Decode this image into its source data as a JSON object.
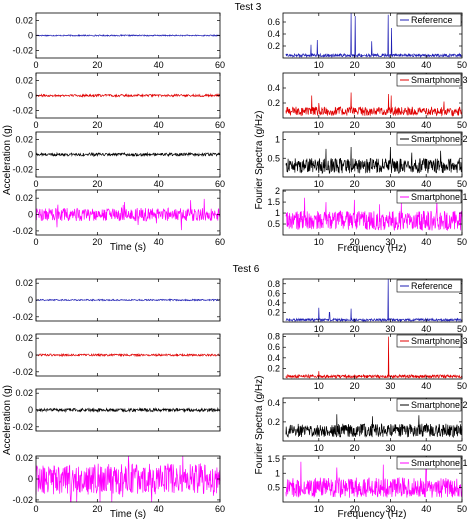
{
  "figure": {
    "tests": [
      {
        "title": "Test 3",
        "time_axis_label": "Time (s)",
        "acc_axis_label": "Acceleration (g)",
        "freq_axis_label": "Frequency (Hz)",
        "fs_axis_label": "Fourier Spectra (g/Hz)"
      },
      {
        "title": "Test 6",
        "time_axis_label": "Time (s)",
        "acc_axis_label": "Acceleration (g)",
        "freq_axis_label": "Frequency (Hz)",
        "fs_axis_label": "Fourier Spectra (g/Hz)"
      }
    ]
  },
  "chart_data": [
    {
      "type": "line",
      "test": "Test 3",
      "column": "time",
      "series": [
        {
          "name": "",
          "color": "#1f1fb4",
          "amplitude": 0.0008
        }
      ],
      "xlim": [
        0,
        60
      ],
      "ylim": [
        -0.03,
        0.03
      ],
      "xticks": [
        0,
        20,
        40,
        60
      ],
      "yticks": [
        -0.02,
        0,
        0.02
      ],
      "ytick_labels": [
        "-0.02",
        "0",
        "0.02"
      ],
      "xlabel": "",
      "ylabel": ""
    },
    {
      "type": "line",
      "test": "Test 3",
      "column": "time",
      "series": [
        {
          "name": "",
          "color": "#e00000",
          "amplitude": 0.0015
        }
      ],
      "xlim": [
        0,
        60
      ],
      "ylim": [
        -0.03,
        0.03
      ],
      "xticks": [
        0,
        20,
        40,
        60
      ],
      "yticks": [
        -0.02,
        0,
        0.02
      ],
      "ytick_labels": [
        "-0.02",
        "0",
        "0.02"
      ],
      "xlabel": "",
      "ylabel": ""
    },
    {
      "type": "line",
      "test": "Test 3",
      "column": "time",
      "series": [
        {
          "name": "",
          "color": "#000000",
          "amplitude": 0.002
        }
      ],
      "xlim": [
        0,
        60
      ],
      "ylim": [
        -0.03,
        0.03
      ],
      "xticks": [
        0,
        20,
        40,
        60
      ],
      "yticks": [
        -0.02,
        0,
        0.02
      ],
      "ytick_labels": [
        "-0.02",
        "0",
        "0.02"
      ],
      "xlabel": "",
      "ylabel": "Acceleration (g)"
    },
    {
      "type": "line",
      "test": "Test 3",
      "column": "time",
      "series": [
        {
          "name": "",
          "color": "#ff00ff",
          "amplitude": 0.008
        }
      ],
      "xlim": [
        0,
        60
      ],
      "ylim": [
        -0.025,
        0.03
      ],
      "xticks": [
        0,
        20,
        40,
        60
      ],
      "yticks": [
        -0.02,
        0,
        0.02
      ],
      "ytick_labels": [
        "-0.02",
        "0",
        "0.02"
      ],
      "xlabel": "Time (s)",
      "ylabel": ""
    },
    {
      "type": "line",
      "test": "Test 3",
      "column": "spectrum",
      "legend": "Reference",
      "series": [
        {
          "name": "Reference",
          "color": "#1f1fb4"
        }
      ],
      "xlim": [
        0,
        50
      ],
      "ylim": [
        0,
        0.75
      ],
      "xticks": [
        10,
        20,
        30,
        40,
        50
      ],
      "yticks": [
        0.2,
        0.4,
        0.6
      ],
      "ytick_labels": [
        "0.2",
        "0.4",
        "0.6"
      ],
      "peaks": [
        [
          7.8,
          0.22
        ],
        [
          9.6,
          0.3
        ],
        [
          19,
          0.75
        ],
        [
          20.2,
          0.7
        ],
        [
          24.8,
          0.28
        ],
        [
          29.4,
          0.72
        ],
        [
          30.3,
          0.5
        ]
      ],
      "base": [
        0.02,
        0.07
      ],
      "xlabel": "",
      "ylabel": ""
    },
    {
      "type": "line",
      "test": "Test 3",
      "column": "spectrum",
      "legend": "Smartphone 3",
      "series": [
        {
          "name": "Smartphone 3",
          "color": "#e00000"
        }
      ],
      "xlim": [
        0,
        50
      ],
      "ylim": [
        0,
        0.6
      ],
      "xticks": [
        10,
        20,
        30,
        40,
        50
      ],
      "yticks": [
        0.2,
        0.4
      ],
      "ytick_labels": [
        "0.2",
        "0.4"
      ],
      "peaks": [
        [
          8,
          0.3
        ],
        [
          10,
          0.2
        ],
        [
          19,
          0.34
        ],
        [
          29.5,
          0.32
        ],
        [
          30.2,
          0.3
        ],
        [
          45,
          0.22
        ]
      ],
      "base": [
        0.03,
        0.15
      ],
      "xlabel": "",
      "ylabel": ""
    },
    {
      "type": "line",
      "test": "Test 3",
      "column": "spectrum",
      "legend": "Smartphone 2",
      "series": [
        {
          "name": "Smartphone 2",
          "color": "#000000"
        }
      ],
      "xlim": [
        0,
        50
      ],
      "ylim": [
        0,
        1.2
      ],
      "xticks": [
        10,
        20,
        30,
        40,
        50
      ],
      "yticks": [
        0.5,
        1
      ],
      "ytick_labels": [
        "0.5",
        "1"
      ],
      "peaks": [
        [
          12,
          0.75
        ],
        [
          19,
          0.8
        ],
        [
          30,
          0.8
        ],
        [
          36,
          0.65
        ],
        [
          44,
          0.7
        ]
      ],
      "base": [
        0.1,
        0.5
      ],
      "xlabel": "",
      "ylabel": "Fourier Spectra (g/Hz)"
    },
    {
      "type": "line",
      "test": "Test 3",
      "column": "spectrum",
      "legend": "Smartphone 1",
      "series": [
        {
          "name": "Smartphone 1",
          "color": "#ff00ff"
        }
      ],
      "xlim": [
        0,
        50
      ],
      "ylim": [
        0,
        2.05
      ],
      "xticks": [
        10,
        20,
        30,
        40,
        50
      ],
      "yticks": [
        0.5,
        1,
        1.5,
        2
      ],
      "ytick_labels": [
        "0.5",
        "1",
        "1.5",
        "2"
      ],
      "peaks": [
        [
          6,
          1.7
        ],
        [
          12,
          1.5
        ],
        [
          20,
          1.6
        ],
        [
          27,
          1.4
        ],
        [
          33,
          1.5
        ],
        [
          43,
          1.6
        ]
      ],
      "base": [
        0.2,
        1.1
      ],
      "xlabel": "Frequency (Hz)",
      "ylabel": ""
    },
    {
      "type": "line",
      "test": "Test 6",
      "column": "time",
      "series": [
        {
          "name": "",
          "color": "#1f1fb4",
          "amplitude": 0.0008
        }
      ],
      "xlim": [
        0,
        60
      ],
      "ylim": [
        -0.025,
        0.025
      ],
      "xticks": [
        0,
        20,
        40,
        60
      ],
      "yticks": [
        -0.02,
        0,
        0.02
      ],
      "ytick_labels": [
        "-0.02",
        "0",
        "0.02"
      ],
      "xlabel": "",
      "ylabel": ""
    },
    {
      "type": "line",
      "test": "Test 6",
      "column": "time",
      "series": [
        {
          "name": "",
          "color": "#e00000",
          "amplitude": 0.0012
        }
      ],
      "xlim": [
        0,
        60
      ],
      "ylim": [
        -0.025,
        0.025
      ],
      "xticks": [
        0,
        20,
        40,
        60
      ],
      "yticks": [
        -0.02,
        0,
        0.02
      ],
      "ytick_labels": [
        "-0.02",
        "0",
        "0.02"
      ],
      "xlabel": "",
      "ylabel": ""
    },
    {
      "type": "line",
      "test": "Test 6",
      "column": "time",
      "series": [
        {
          "name": "",
          "color": "#000000",
          "amplitude": 0.002
        }
      ],
      "xlim": [
        0,
        60
      ],
      "ylim": [
        -0.025,
        0.025
      ],
      "xticks": [
        0,
        20,
        40,
        60
      ],
      "yticks": [
        -0.02,
        0,
        0.02
      ],
      "ytick_labels": [
        "-0.02",
        "0",
        "0.02"
      ],
      "xlabel": "",
      "ylabel": "Acceleration (g)"
    },
    {
      "type": "line",
      "test": "Test 6",
      "column": "time",
      "series": [
        {
          "name": "",
          "color": "#ff00ff",
          "amplitude": 0.015
        }
      ],
      "xlim": [
        0,
        60
      ],
      "ylim": [
        -0.022,
        0.022
      ],
      "xticks": [
        0,
        20,
        40,
        60
      ],
      "yticks": [
        -0.02,
        0,
        0.02
      ],
      "ytick_labels": [
        "-0.02",
        "0",
        "0.02"
      ],
      "xlabel": "Time (s)",
      "ylabel": ""
    },
    {
      "type": "line",
      "test": "Test 6",
      "column": "spectrum",
      "legend": "Reference",
      "series": [
        {
          "name": "Reference",
          "color": "#1f1fb4"
        }
      ],
      "xlim": [
        0,
        50
      ],
      "ylim": [
        0,
        0.9
      ],
      "xticks": [
        10,
        20,
        30,
        40,
        50
      ],
      "yticks": [
        0.2,
        0.4,
        0.6,
        0.8
      ],
      "ytick_labels": [
        "0.2",
        "0.4",
        "0.6",
        "0.8"
      ],
      "peaks": [
        [
          10,
          0.3
        ],
        [
          13,
          0.2
        ],
        [
          19,
          0.28
        ],
        [
          29.4,
          0.9
        ]
      ],
      "base": [
        0.02,
        0.07
      ],
      "xlabel": "",
      "ylabel": ""
    },
    {
      "type": "line",
      "test": "Test 6",
      "column": "spectrum",
      "legend": "Smartphone 3",
      "series": [
        {
          "name": "Smartphone 3",
          "color": "#e00000"
        }
      ],
      "xlim": [
        0,
        50
      ],
      "ylim": [
        0,
        0.85
      ],
      "xticks": [
        10,
        20,
        30,
        40,
        50
      ],
      "yticks": [
        0.2,
        0.4,
        0.6,
        0.8
      ],
      "ytick_labels": [
        "0.2",
        "0.4",
        "0.6",
        "0.8"
      ],
      "peaks": [
        [
          29.5,
          0.8
        ],
        [
          10,
          0.15
        ]
      ],
      "base": [
        0.02,
        0.08
      ],
      "xlabel": "",
      "ylabel": ""
    },
    {
      "type": "line",
      "test": "Test 6",
      "column": "spectrum",
      "legend": "Smartphone 2",
      "series": [
        {
          "name": "Smartphone 2",
          "color": "#000000"
        }
      ],
      "xlim": [
        0,
        50
      ],
      "ylim": [
        0,
        0.45
      ],
      "xticks": [
        10,
        20,
        30,
        40,
        50
      ],
      "yticks": [
        0.2,
        0.4
      ],
      "ytick_labels": [
        "0.2",
        "0.4"
      ],
      "peaks": [
        [
          15,
          0.28
        ],
        [
          25,
          0.26
        ],
        [
          38,
          0.27
        ]
      ],
      "base": [
        0.04,
        0.18
      ],
      "xlabel": "",
      "ylabel": "Fourier Spectra (g/Hz)"
    },
    {
      "type": "line",
      "test": "Test 6",
      "column": "spectrum",
      "legend": "Smartphone 1",
      "series": [
        {
          "name": "Smartphone 1",
          "color": "#ff00ff"
        }
      ],
      "xlim": [
        0,
        50
      ],
      "ylim": [
        0,
        1.6
      ],
      "xticks": [
        10,
        20,
        30,
        40,
        50
      ],
      "yticks": [
        0.5,
        1,
        1.5
      ],
      "ytick_labels": [
        "0.5",
        "1",
        "1.5"
      ],
      "peaks": [
        [
          5,
          1.4
        ],
        [
          15,
          1.2
        ],
        [
          28,
          1.3
        ],
        [
          40,
          1.35
        ]
      ],
      "base": [
        0.15,
        0.85
      ],
      "xlabel": "Frequency (Hz)",
      "ylabel": ""
    }
  ]
}
